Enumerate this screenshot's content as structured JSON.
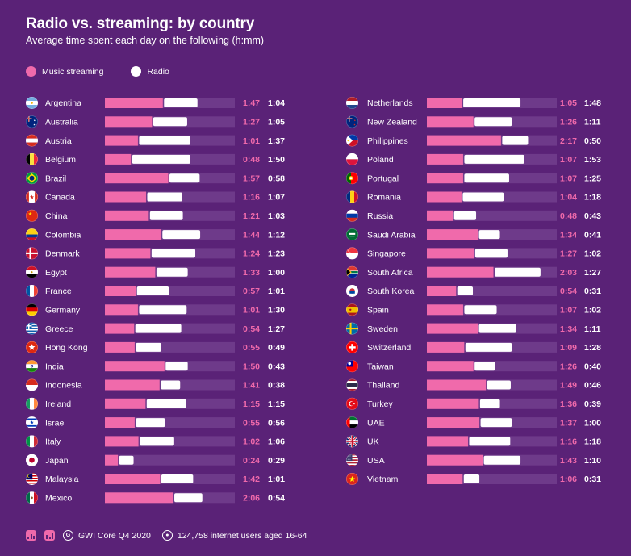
{
  "header": {
    "title": "Radio vs. streaming: by country",
    "subtitle": "Average time spent each day on the following (h:mm)"
  },
  "legend": {
    "streaming_label": "Music streaming",
    "radio_label": "Radio"
  },
  "footer": {
    "source": "GWI Core Q4 2020",
    "sample": "124,758 internet users aged 16-64"
  },
  "colors": {
    "background": "#5a2277",
    "streaming": "#f06aab",
    "radio": "#ffffff",
    "track": "#6e3a8a"
  },
  "chart_data": {
    "type": "bar",
    "orientation": "horizontal",
    "stacked": true,
    "units": "h:mm",
    "title": "Radio vs. streaming: by country",
    "subtitle": "Average time spent each day on the following (h:mm)",
    "xlim": [
      0,
      240
    ],
    "series_names": [
      "Music streaming",
      "Radio"
    ],
    "left_column": [
      {
        "country": "Argentina",
        "flag": "flag-argentina",
        "streaming": "1:47",
        "radio": "1:04"
      },
      {
        "country": "Australia",
        "flag": "flag-australia",
        "streaming": "1:27",
        "radio": "1:05"
      },
      {
        "country": "Austria",
        "flag": "flag-austria",
        "streaming": "1:01",
        "radio": "1:37"
      },
      {
        "country": "Belgium",
        "flag": "flag-belgium",
        "streaming": "0:48",
        "radio": "1:50"
      },
      {
        "country": "Brazil",
        "flag": "flag-brazil",
        "streaming": "1:57",
        "radio": "0:58"
      },
      {
        "country": "Canada",
        "flag": "flag-canada",
        "streaming": "1:16",
        "radio": "1:07"
      },
      {
        "country": "China",
        "flag": "flag-china",
        "streaming": "1:21",
        "radio": "1:03"
      },
      {
        "country": "Colombia",
        "flag": "flag-colombia",
        "streaming": "1:44",
        "radio": "1:12"
      },
      {
        "country": "Denmark",
        "flag": "flag-denmark",
        "streaming": "1:24",
        "radio": "1:23"
      },
      {
        "country": "Egypt",
        "flag": "flag-egypt",
        "streaming": "1:33",
        "radio": "1:00"
      },
      {
        "country": "France",
        "flag": "flag-france",
        "streaming": "0:57",
        "radio": "1:01"
      },
      {
        "country": "Germany",
        "flag": "flag-germany",
        "streaming": "1:01",
        "radio": "1:30"
      },
      {
        "country": "Greece",
        "flag": "flag-greece",
        "streaming": "0:54",
        "radio": "1:27"
      },
      {
        "country": "Hong Kong",
        "flag": "flag-hong-kong",
        "streaming": "0:55",
        "radio": "0:49"
      },
      {
        "country": "India",
        "flag": "flag-india",
        "streaming": "1:50",
        "radio": "0:43"
      },
      {
        "country": "Indonesia",
        "flag": "flag-indonesia",
        "streaming": "1:41",
        "radio": "0:38"
      },
      {
        "country": "Ireland",
        "flag": "flag-ireland",
        "streaming": "1:15",
        "radio": "1:15"
      },
      {
        "country": "Israel",
        "flag": "flag-israel",
        "streaming": "0:55",
        "radio": "0:56"
      },
      {
        "country": "Italy",
        "flag": "flag-italy",
        "streaming": "1:02",
        "radio": "1:06"
      },
      {
        "country": "Japan",
        "flag": "flag-japan",
        "streaming": "0:24",
        "radio": "0:29"
      },
      {
        "country": "Malaysia",
        "flag": "flag-malaysia",
        "streaming": "1:42",
        "radio": "1:01"
      },
      {
        "country": "Mexico",
        "flag": "flag-mexico",
        "streaming": "2:06",
        "radio": "0:54"
      }
    ],
    "right_column": [
      {
        "country": "Netherlands",
        "flag": "flag-netherlands",
        "streaming": "1:05",
        "radio": "1:48"
      },
      {
        "country": "New Zealand",
        "flag": "flag-new-zealand",
        "streaming": "1:26",
        "radio": "1:11"
      },
      {
        "country": "Philippines",
        "flag": "flag-philippines",
        "streaming": "2:17",
        "radio": "0:50"
      },
      {
        "country": "Poland",
        "flag": "flag-poland",
        "streaming": "1:07",
        "radio": "1:53"
      },
      {
        "country": "Portugal",
        "flag": "flag-portugal",
        "streaming": "1:07",
        "radio": "1:25"
      },
      {
        "country": "Romania",
        "flag": "flag-romania",
        "streaming": "1:04",
        "radio": "1:18"
      },
      {
        "country": "Russia",
        "flag": "flag-russia",
        "streaming": "0:48",
        "radio": "0:43"
      },
      {
        "country": "Saudi Arabia",
        "flag": "flag-saudi-arabia",
        "streaming": "1:34",
        "radio": "0:41"
      },
      {
        "country": "Singapore",
        "flag": "flag-singapore",
        "streaming": "1:27",
        "radio": "1:02"
      },
      {
        "country": "South Africa",
        "flag": "flag-south-africa",
        "streaming": "2:03",
        "radio": "1:27"
      },
      {
        "country": "South Korea",
        "flag": "flag-south-korea",
        "streaming": "0:54",
        "radio": "0:31"
      },
      {
        "country": "Spain",
        "flag": "flag-spain",
        "streaming": "1:07",
        "radio": "1:02"
      },
      {
        "country": "Sweden",
        "flag": "flag-sweden",
        "streaming": "1:34",
        "radio": "1:11"
      },
      {
        "country": "Switzerland",
        "flag": "flag-switzerland",
        "streaming": "1:09",
        "radio": "1:28"
      },
      {
        "country": "Taiwan",
        "flag": "flag-taiwan",
        "streaming": "1:26",
        "radio": "0:40"
      },
      {
        "country": "Thailand",
        "flag": "flag-thailand",
        "streaming": "1:49",
        "radio": "0:46"
      },
      {
        "country": "Turkey",
        "flag": "flag-turkey",
        "streaming": "1:36",
        "radio": "0:39"
      },
      {
        "country": "UAE",
        "flag": "flag-uae",
        "streaming": "1:37",
        "radio": "1:00"
      },
      {
        "country": "UK",
        "flag": "flag-uk",
        "streaming": "1:16",
        "radio": "1:18"
      },
      {
        "country": "USA",
        "flag": "flag-usa",
        "streaming": "1:43",
        "radio": "1:10"
      },
      {
        "country": "Vietnam",
        "flag": "flag-vietnam",
        "streaming": "1:06",
        "radio": "0:31"
      }
    ]
  }
}
